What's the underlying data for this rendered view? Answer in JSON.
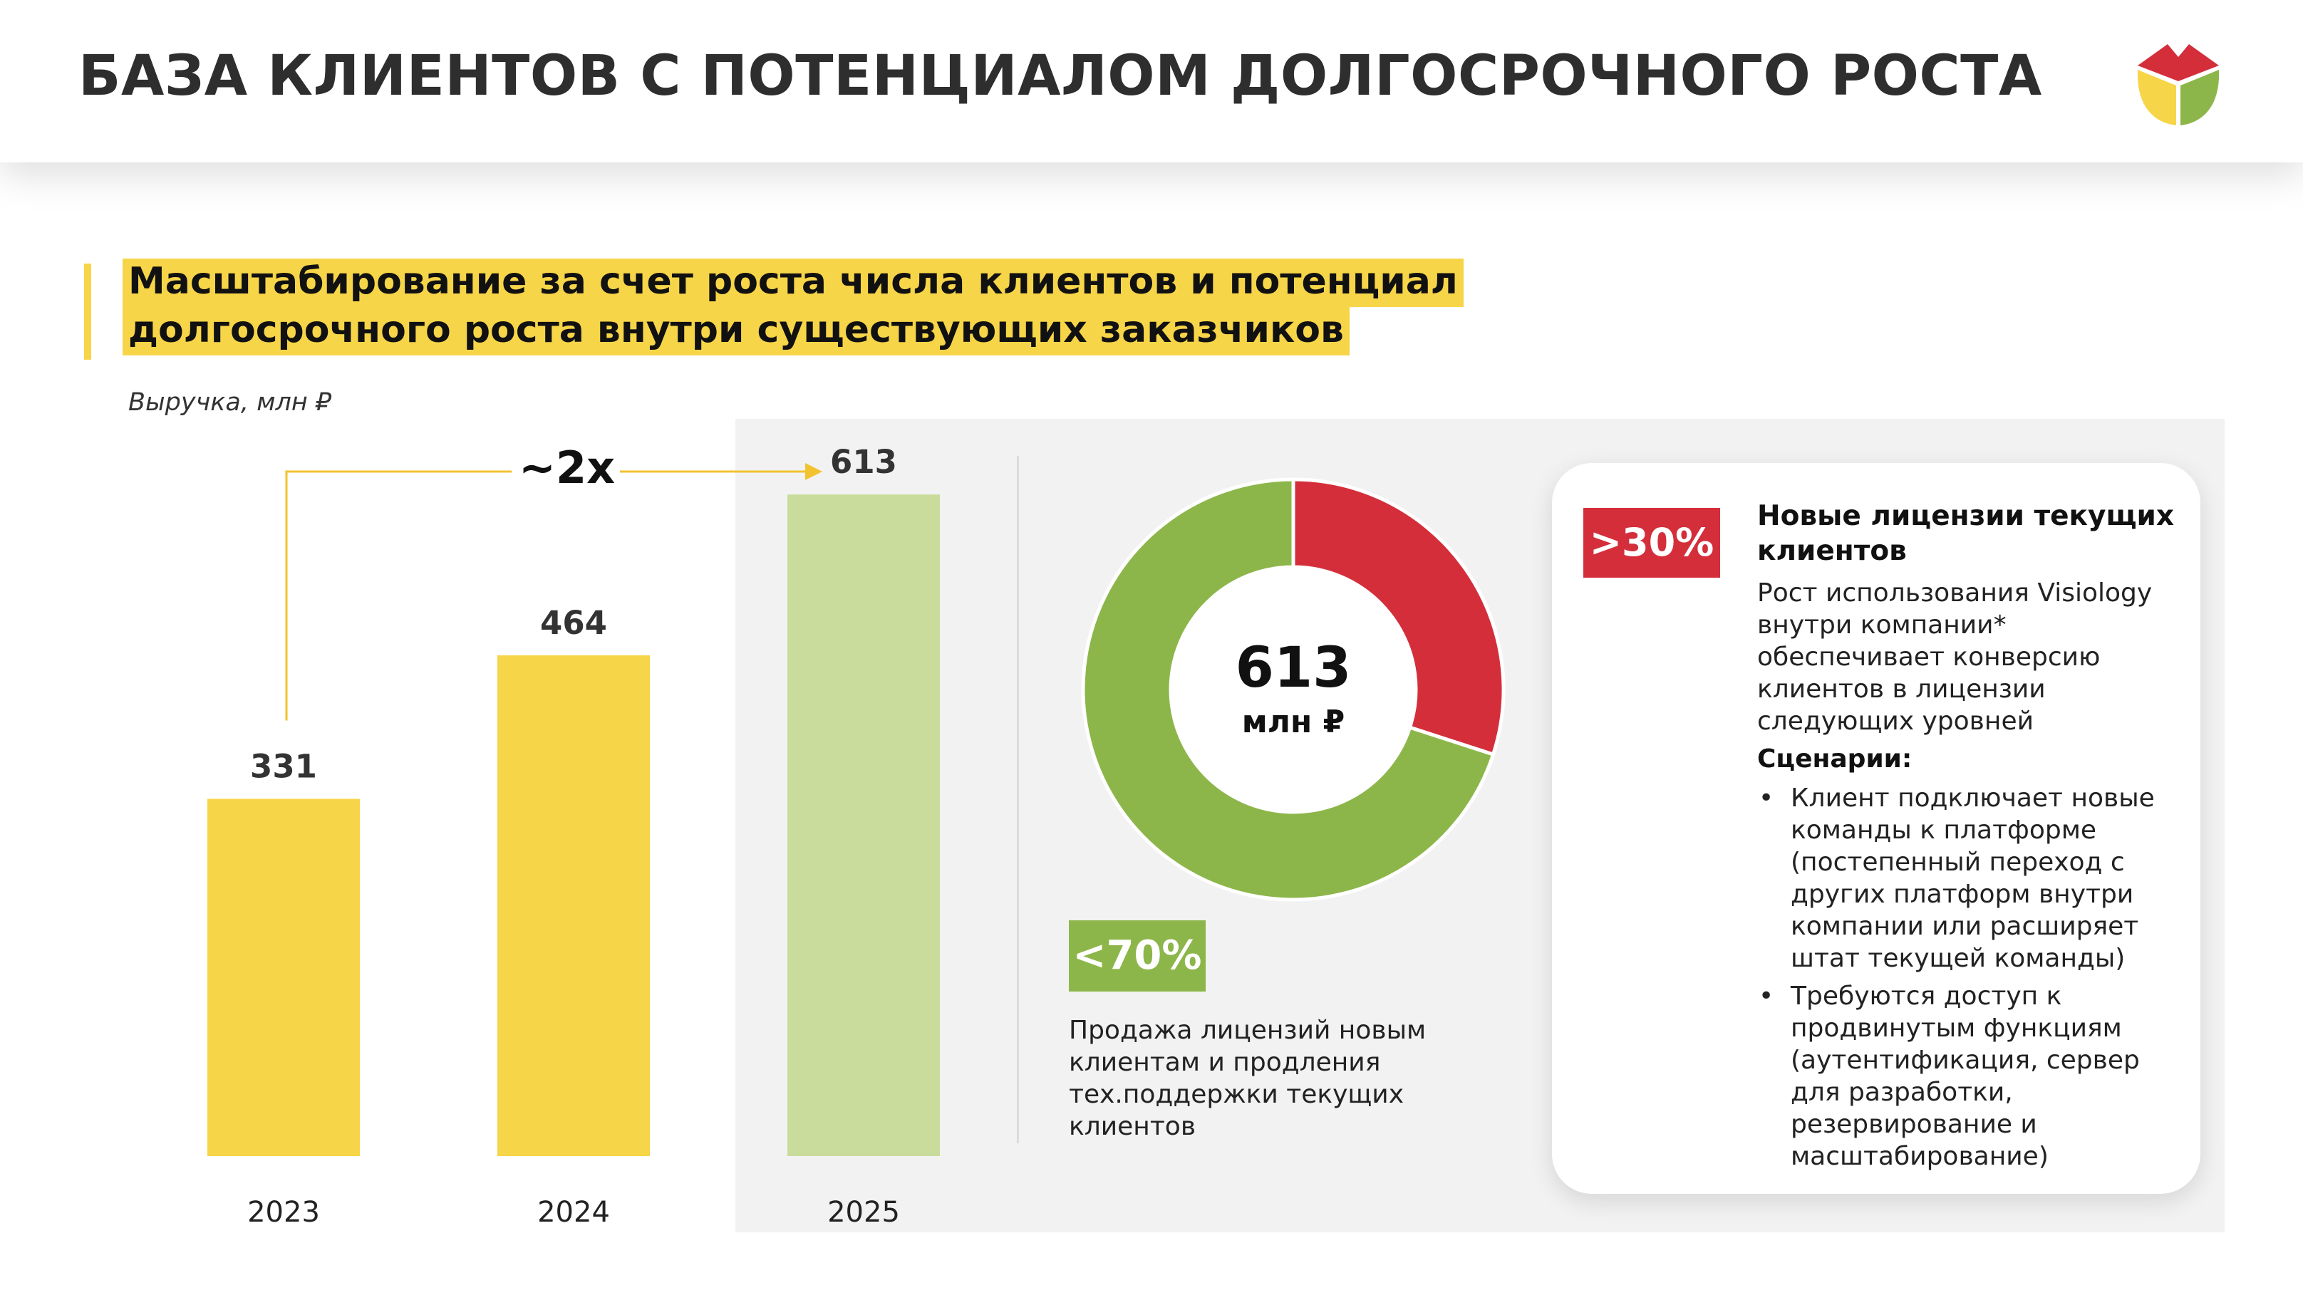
{
  "header": {
    "title": "БАЗА КЛИЕНТОВ С ПОТЕНЦИАЛОМ ДОЛГОСРОЧНОГО РОСТА"
  },
  "subtitle": {
    "line1": "Масштабирование за счет роста числа клиентов и потенциал",
    "line2": "долгосрочного роста внутри существующих заказчиков"
  },
  "colors": {
    "yellow": "#f7d548",
    "light_green": "#c9dc9c",
    "green": "#8db64a",
    "red": "#d42e3b",
    "panel_grey": "#f2f2f2"
  },
  "chart_data": [
    {
      "type": "bar",
      "ylabel": "Выручка, млн ₽",
      "categories": [
        "2023",
        "2024",
        "2025"
      ],
      "values": [
        331,
        464,
        613
      ],
      "ylim": [
        0,
        660
      ],
      "bar_colors": [
        "#f7d548",
        "#f7d548",
        "#c9dc9c"
      ],
      "annotation": "~2x",
      "legend": "none",
      "grid": false
    },
    {
      "type": "pie",
      "center_value": "613",
      "center_unit": "млн ₽",
      "slices": [
        {
          "label": ">30%",
          "value": 30,
          "color": "#d42e3b"
        },
        {
          "label": "<70%",
          "value": 70,
          "color": "#8db64a"
        }
      ]
    }
  ],
  "new_clients": {
    "badge": "<70%",
    "description": "Продажа лицензий новым клиентам и продления тех.поддержки текущих клиентов"
  },
  "card": {
    "badge": ">30%",
    "heading": "Новые лицензии текущих клиентов",
    "body": "Рост использования Visiology внутри компании* обеспечивает конверсию клиентов в лицензии следующих уровней",
    "scenarios_label": "Сценарии:",
    "scenarios": [
      "Клиент подключает новые команды к платформе (постепенный переход с других платформ внутри компании или расширяет штат текущей команды)",
      "Требуются доступ к продвинутым функциям (аутентификация, сервер для разработки, резервирование и масштабирование)"
    ]
  }
}
